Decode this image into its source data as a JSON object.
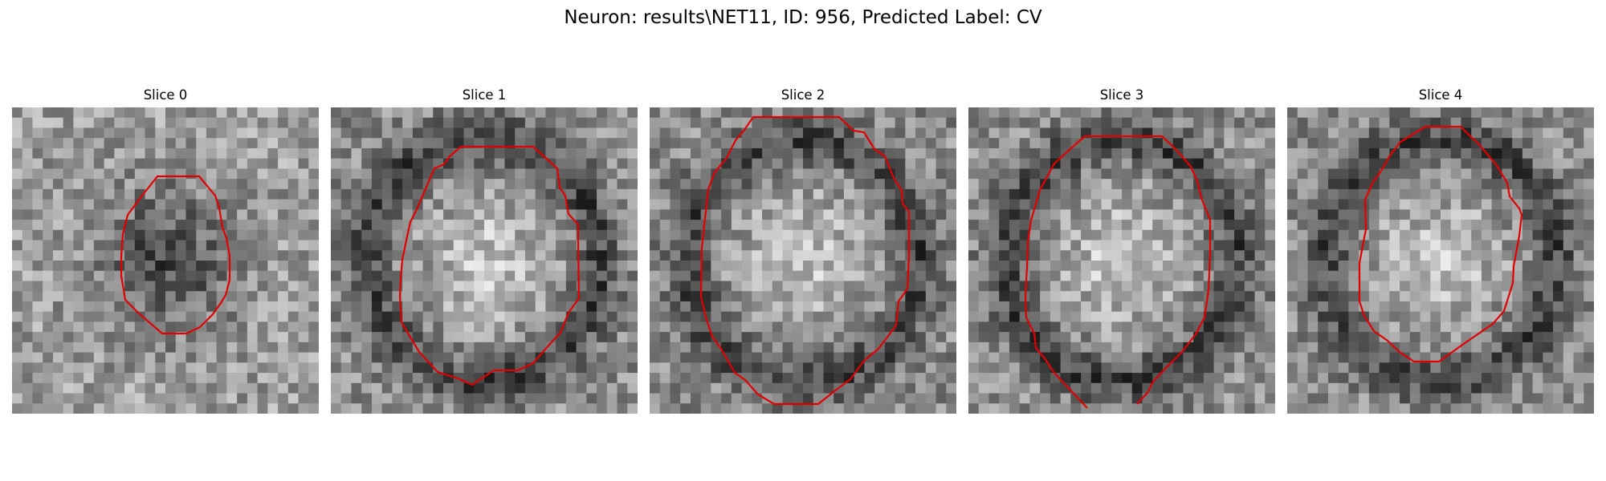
{
  "figure": {
    "title": "Neuron: results\\NET11, ID: 956, Predicted Label: CV"
  },
  "panels": [
    {
      "title": "Slice 0",
      "style": "cluster"
    },
    {
      "title": "Slice 1",
      "style": "ring"
    },
    {
      "title": "Slice 2",
      "style": "ring"
    },
    {
      "title": "Slice 3",
      "style": "ring"
    },
    {
      "title": "Slice 4",
      "style": "ring"
    }
  ],
  "colors": {
    "contour": "#e00000",
    "background": "#ffffff"
  }
}
